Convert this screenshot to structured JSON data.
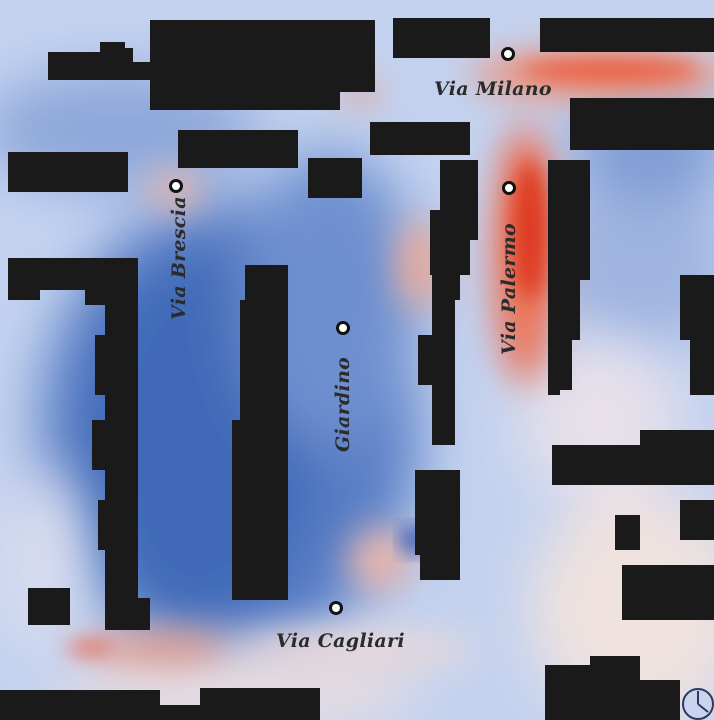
{
  "map": {
    "streets": [
      {
        "id": "via-milano",
        "name": "Via Milano",
        "orientation": "horizontal"
      },
      {
        "id": "via-brescia",
        "name": "Via Brescia",
        "orientation": "vertical"
      },
      {
        "id": "via-palermo",
        "name": "Via Palermo",
        "orientation": "vertical"
      },
      {
        "id": "giardino",
        "name": "Giardino",
        "orientation": "vertical"
      },
      {
        "id": "via-cagliari",
        "name": "Via Cagliari",
        "orientation": "horizontal"
      }
    ],
    "colors": {
      "building": "#1b1a1a",
      "cool_deep": "#3f6ab8",
      "cool_mid": "#7d9ad4",
      "cool_light": "#c4d2ee",
      "neutral": "#f2e6e1",
      "warm_light": "#f4b6a2",
      "warm_mid": "#ee7152",
      "warm_hot": "#dd3a24",
      "marker_fill": "#ffffff",
      "marker_stroke": "#111111"
    },
    "compass_icon": "north-clock-icon"
  }
}
